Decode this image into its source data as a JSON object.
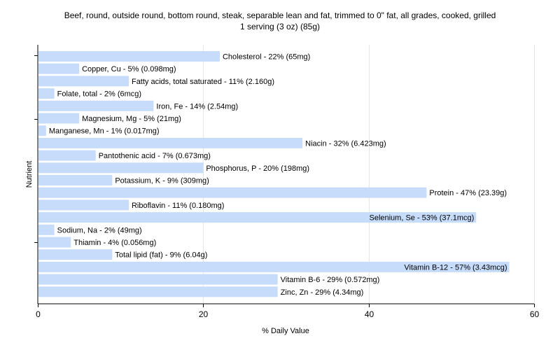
{
  "chart_data": {
    "type": "bar",
    "orientation": "horizontal",
    "title": "Beef, round, outside round, bottom round, steak, separable lean and fat, trimmed to 0\" fat, all grades, cooked, grilled",
    "subtitle": "1 serving (3 oz) (85g)",
    "xlabel": "% Daily Value",
    "ylabel": "Nutrient",
    "xlim": [
      0,
      60
    ],
    "xticks": [
      0,
      20,
      40,
      60
    ],
    "grid": true,
    "bar_color": "#c6dcfa",
    "categories": [
      "Cholesterol",
      "Copper, Cu",
      "Fatty acids, total saturated",
      "Folate, total",
      "Iron, Fe",
      "Magnesium, Mg",
      "Manganese, Mn",
      "Niacin",
      "Pantothenic acid",
      "Phosphorus, P",
      "Potassium, K",
      "Protein",
      "Riboflavin",
      "Selenium, Se",
      "Sodium, Na",
      "Thiamin",
      "Total lipid (fat)",
      "Vitamin B-12",
      "Vitamin B-6",
      "Zinc, Zn"
    ],
    "values": [
      22,
      5,
      11,
      2,
      14,
      5,
      1,
      32,
      7,
      20,
      9,
      47,
      11,
      53,
      2,
      4,
      9,
      57,
      29,
      29
    ],
    "labels": [
      "Cholesterol - 22% (65mg)",
      "Copper, Cu - 5% (0.098mg)",
      "Fatty acids, total saturated - 11% (2.160g)",
      "Folate, total - 2% (6mcg)",
      "Iron, Fe - 14% (2.54mg)",
      "Magnesium, Mg - 5% (21mg)",
      "Manganese, Mn - 1% (0.017mg)",
      "Niacin - 32% (6.423mg)",
      "Pantothenic acid - 7% (0.673mg)",
      "Phosphorus, P - 20% (198mg)",
      "Potassium, K - 9% (309mg)",
      "Protein - 47% (23.39g)",
      "Riboflavin - 11% (0.180mg)",
      "Selenium, Se - 53% (37.1mcg)",
      "Sodium, Na - 2% (49mg)",
      "Thiamin - 4% (0.056mg)",
      "Total lipid (fat) - 9% (6.04g)",
      "Vitamin B-12 - 57% (3.43mcg)",
      "Vitamin B-6 - 29% (0.572mg)",
      "Zinc, Zn - 29% (4.34mg)"
    ]
  }
}
